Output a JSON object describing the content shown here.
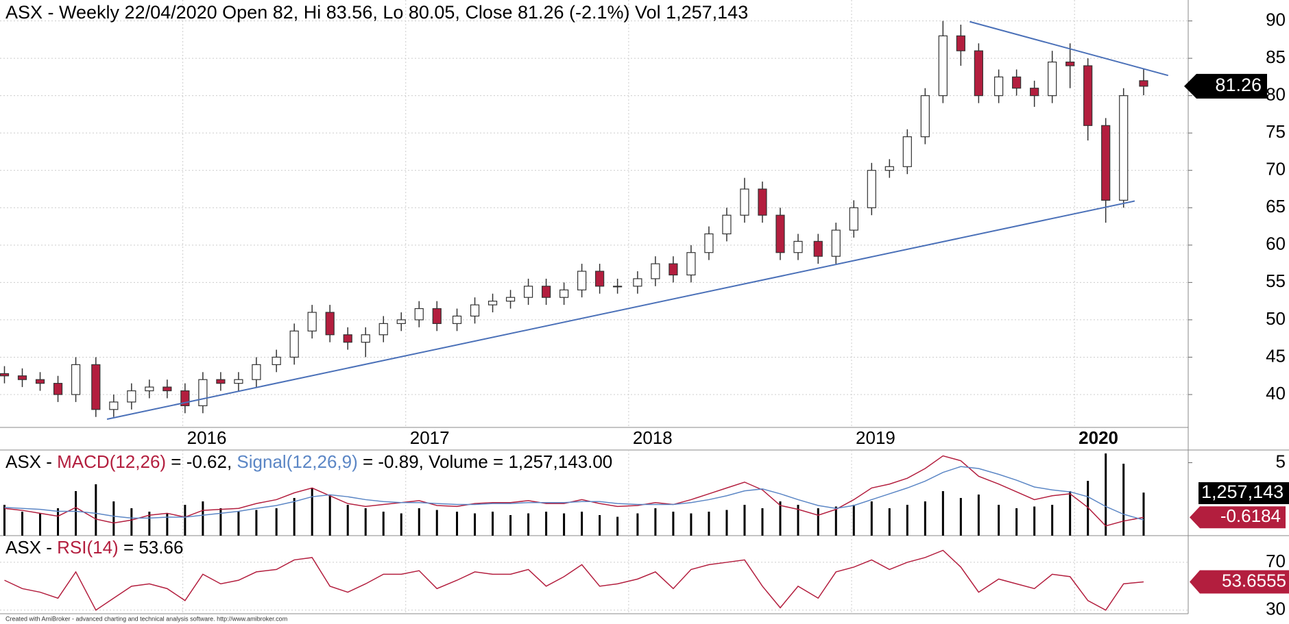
{
  "chart_data": [
    {
      "type": "candlestick",
      "title": "ASX - Weekly 22/04/2020 Open 82, Hi 83.56, Lo 80.05, Close 81.26 (-2.1%) Vol 1,257,143",
      "x": [
        2015.2,
        2015.28,
        2015.36,
        2015.44,
        2015.52,
        2015.61,
        2015.69,
        2015.77,
        2015.85,
        2015.93,
        2016.01,
        2016.09,
        2016.17,
        2016.25,
        2016.33,
        2016.42,
        2016.5,
        2016.58,
        2016.66,
        2016.74,
        2016.82,
        2016.9,
        2016.98,
        2017.06,
        2017.14,
        2017.23,
        2017.31,
        2017.39,
        2017.47,
        2017.55,
        2017.63,
        2017.71,
        2017.79,
        2017.87,
        2017.95,
        2018.04,
        2018.12,
        2018.2,
        2018.28,
        2018.36,
        2018.44,
        2018.52,
        2018.6,
        2018.68,
        2018.76,
        2018.85,
        2018.93,
        2019.01,
        2019.09,
        2019.17,
        2019.25,
        2019.33,
        2019.41,
        2019.49,
        2019.57,
        2019.66,
        2019.74,
        2019.82,
        2019.9,
        2019.98,
        2020.06,
        2020.14,
        2020.22,
        2020.31
      ],
      "open": [
        42.8,
        42.5,
        42,
        41.5,
        40,
        44,
        38,
        39,
        40.5,
        41,
        40.5,
        38.5,
        42,
        41.5,
        42,
        44,
        45,
        48.5,
        51,
        48,
        47,
        48,
        49.5,
        50,
        51.5,
        49.5,
        50.5,
        52,
        52.5,
        53,
        54.5,
        53,
        54,
        56.5,
        54.5,
        54.5,
        55.5,
        57.5,
        56,
        59,
        61.5,
        64,
        67.5,
        64,
        59,
        60.5,
        58.5,
        62,
        65,
        70,
        70.5,
        74.5,
        80,
        88,
        86,
        80,
        82.5,
        81,
        80,
        84.5,
        84,
        76,
        66,
        82
      ],
      "high": [
        43.8,
        43.5,
        43,
        42.5,
        45,
        45,
        40,
        41.5,
        42,
        42,
        41.5,
        43,
        43,
        43,
        45,
        46,
        49.5,
        52,
        52,
        49,
        49,
        50.5,
        51,
        52.5,
        52.5,
        51.5,
        53,
        53.5,
        54,
        55.5,
        55.5,
        55,
        57.5,
        57.5,
        55.5,
        56.5,
        58.5,
        58.5,
        60,
        62.5,
        65,
        69,
        68.5,
        65,
        61.5,
        61.5,
        63,
        66,
        71,
        71.5,
        75.5,
        81,
        90,
        89.5,
        87,
        83.5,
        83.5,
        82,
        86,
        87,
        85,
        77,
        81,
        83.56
      ],
      "low": [
        41.5,
        41,
        40.5,
        39,
        39,
        37,
        37,
        38,
        39.5,
        39.5,
        37.5,
        37.5,
        40.5,
        40.5,
        41,
        43,
        44,
        47.5,
        47,
        46,
        45,
        47,
        48.5,
        49,
        48.5,
        48.5,
        49.5,
        51,
        51.5,
        52,
        52,
        52,
        53,
        53.5,
        53.5,
        53.5,
        54.5,
        55,
        55,
        58,
        60.5,
        63,
        63,
        58,
        58,
        57.5,
        57.5,
        61,
        64,
        69,
        69.5,
        73.5,
        79,
        84,
        79,
        79,
        80,
        78.5,
        79,
        81,
        74,
        63,
        65,
        80.05
      ],
      "close": [
        42.5,
        42,
        41.5,
        40,
        44,
        38,
        39,
        40.5,
        41,
        40.5,
        38.5,
        42,
        41.5,
        42,
        44,
        45,
        48.5,
        51,
        48,
        47,
        48,
        49.5,
        50,
        51.5,
        49.5,
        50.5,
        52,
        52.5,
        53,
        54.5,
        53,
        54,
        56.5,
        54.5,
        54.5,
        55.5,
        57.5,
        56,
        59,
        61.5,
        64,
        67.5,
        64,
        59,
        60.5,
        58.5,
        62,
        65,
        70,
        70.5,
        74.5,
        80,
        88,
        86,
        80,
        82.5,
        81,
        80,
        84.5,
        84,
        76,
        66,
        80,
        81.26
      ],
      "up_color": "#ffffff",
      "down_color": "#b31e3e",
      "outline_color": "#333333",
      "trendlines": [
        {
          "x": [
            2015.66,
            2020.27
          ],
          "y": [
            36.7,
            65.9
          ]
        },
        {
          "x": [
            2019.53,
            2020.42
          ],
          "y": [
            89.9,
            82.7
          ]
        }
      ],
      "trendline_color": "#4a70b8",
      "xlim": [
        2015.18,
        2020.51
      ],
      "xticks": [
        2016,
        2017,
        2018,
        2019,
        2020
      ],
      "xtick_bold": [
        false,
        false,
        false,
        false,
        true
      ],
      "ylim": [
        35.6,
        92.8
      ],
      "yticks": [
        40,
        45,
        50,
        55,
        60,
        65,
        70,
        75,
        80,
        85,
        90
      ],
      "grid": true
    },
    {
      "type": "macd",
      "title": [
        "ASX - ",
        "MACD(12,26)",
        " = -0.62, ",
        "Signal(12,26,9)",
        " = -0.89, Volume = 1,257,143.00"
      ],
      "title_colors": [
        "#000000",
        "#b31e3e",
        "#000000",
        "#5b86c5",
        "#000000"
      ],
      "volume": [
        900000,
        700000,
        650000,
        800000,
        1300000,
        1500000,
        1000000,
        800000,
        700000,
        650000,
        900000,
        1000000,
        800000,
        700000,
        750000,
        800000,
        1100000,
        1400000,
        1200000,
        900000,
        800000,
        700000,
        650000,
        800000,
        750000,
        700000,
        650000,
        700000,
        600000,
        650000,
        700000,
        650000,
        700000,
        600000,
        550000,
        650000,
        800000,
        700000,
        650000,
        700000,
        750000,
        900000,
        800000,
        1000000,
        900000,
        800000,
        850000,
        900000,
        1000000,
        800000,
        900000,
        1000000,
        1300000,
        1100000,
        1200000,
        900000,
        800000,
        850000,
        900000,
        1300000,
        1600000,
        2400000,
        2100000,
        1257143
      ],
      "vlim": [
        0,
        2500000
      ],
      "volume_color": "#000000",
      "volume_label": "1,257,143",
      "series": [
        {
          "name": "MACD",
          "color": "#b31e3e",
          "values": [
            0.3,
            0.1,
            -0.2,
            -0.5,
            0.4,
            -0.8,
            -1.2,
            -0.9,
            -0.4,
            -0.2,
            -0.6,
            0.1,
            0.2,
            0.3,
            0.8,
            1.2,
            1.9,
            2.4,
            1.6,
            0.8,
            0.5,
            0.7,
            0.9,
            1.1,
            0.6,
            0.5,
            0.8,
            0.9,
            0.9,
            1.1,
            0.8,
            0.8,
            1.2,
            0.8,
            0.5,
            0.6,
            0.9,
            0.7,
            1.2,
            1.8,
            2.4,
            3.0,
            2.2,
            0.6,
            0.2,
            -0.4,
            0.2,
            1.2,
            2.4,
            2.8,
            3.4,
            4.4,
            5.7,
            5.2,
            3.6,
            2.8,
            2.0,
            1.2,
            1.6,
            1.8,
            0.4,
            -1.5,
            -1.0,
            -0.62
          ]
        },
        {
          "name": "Signal",
          "color": "#5b86c5",
          "values": [
            0.4,
            0.3,
            0.2,
            0,
            0,
            -0.2,
            -0.5,
            -0.7,
            -0.7,
            -0.6,
            -0.6,
            -0.4,
            -0.2,
            0,
            0.3,
            0.6,
            1.0,
            1.5,
            1.7,
            1.5,
            1.2,
            1.0,
            0.9,
            0.9,
            0.8,
            0.7,
            0.7,
            0.8,
            0.8,
            0.9,
            0.9,
            0.9,
            1.0,
            1.0,
            0.8,
            0.7,
            0.7,
            0.7,
            0.9,
            1.2,
            1.6,
            2.1,
            2.3,
            1.8,
            1.2,
            0.6,
            0.3,
            0.6,
            1.2,
            1.8,
            2.4,
            3.1,
            4.0,
            4.6,
            4.4,
            3.8,
            3.2,
            2.5,
            2.2,
            2.0,
            1.5,
            0.5,
            -0.3,
            -0.89
          ]
        }
      ],
      "macd_label": "-0.6184",
      "ylim": [
        -2.5,
        6.3
      ],
      "yticks": [
        5
      ]
    },
    {
      "type": "line",
      "title": [
        "ASX - ",
        "RSI(14)",
        " = 53.66"
      ],
      "title_colors": [
        "#000000",
        "#b31e3e",
        "#000000"
      ],
      "series": [
        {
          "name": "RSI",
          "color": "#b31e3e",
          "values": [
            55,
            48,
            45,
            40,
            62,
            30,
            40,
            50,
            52,
            48,
            38,
            60,
            52,
            55,
            62,
            64,
            72,
            74,
            50,
            45,
            52,
            60,
            60,
            63,
            48,
            55,
            62,
            60,
            60,
            64,
            50,
            58,
            68,
            50,
            52,
            56,
            62,
            48,
            64,
            68,
            70,
            72,
            50,
            32,
            50,
            40,
            62,
            66,
            72,
            64,
            70,
            74,
            80,
            66,
            45,
            56,
            52,
            48,
            60,
            58,
            38,
            30,
            52,
            53.66
          ]
        }
      ],
      "rsi_label": "53.6555",
      "ylim": [
        27,
        92.3
      ],
      "yticks": [
        70,
        30
      ]
    }
  ],
  "footer": "Created with AmiBroker - advanced charting and technical analysis software. http://www.amibroker.com"
}
